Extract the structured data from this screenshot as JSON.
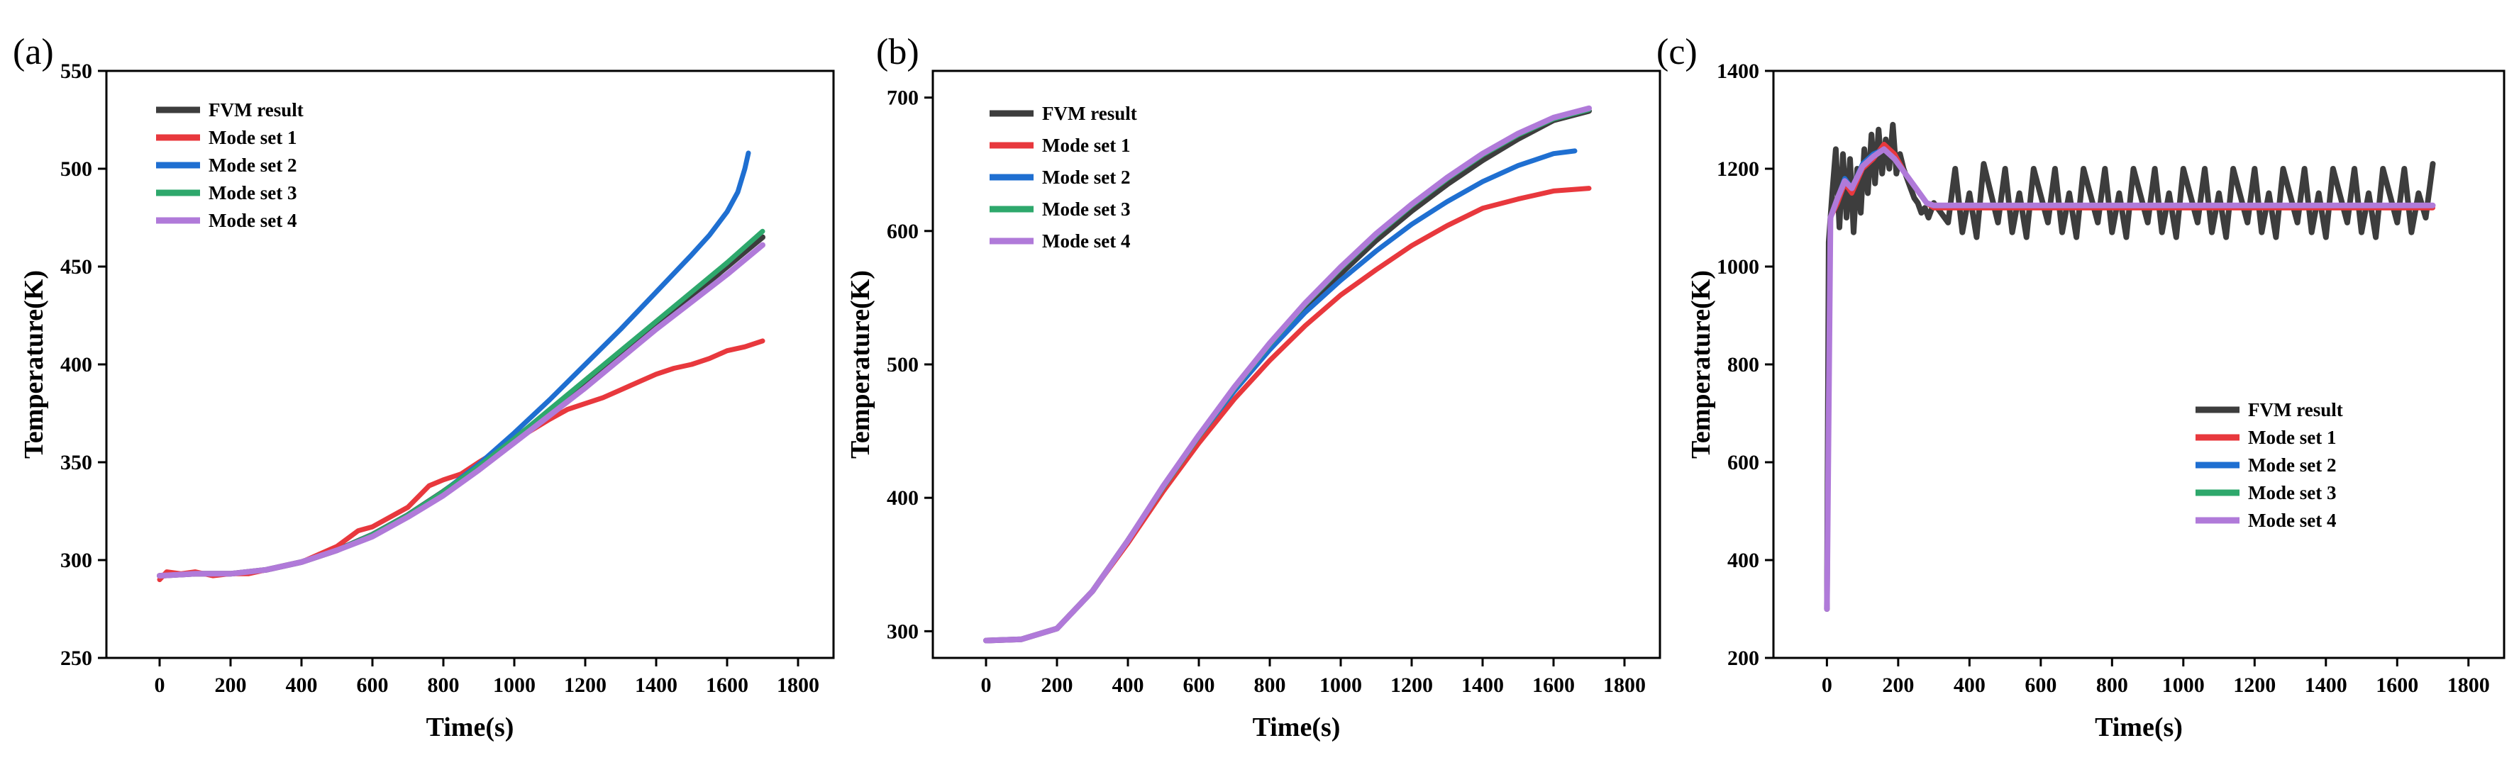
{
  "figure": {
    "xlabel": "Time(s)",
    "ylabel": "Temperature(K)"
  },
  "colors": {
    "FVM result": "#3d3d3d",
    "Mode set 1": "#e8383d",
    "Mode set 2": "#1f6fd1",
    "Mode set 3": "#2ea86c",
    "Mode set 4": "#b07ad9"
  },
  "chart_data": [
    {
      "type": "line",
      "panel_label": "(a)",
      "xlabel": "Time(s)",
      "ylabel": "Temperature(K)",
      "xlim": [
        -150,
        1900
      ],
      "ylim": [
        250,
        550
      ],
      "xticks": [
        0,
        200,
        400,
        600,
        800,
        1000,
        1200,
        1400,
        1600,
        1800
      ],
      "yticks": [
        250,
        300,
        350,
        400,
        450,
        500,
        550
      ],
      "legend": {
        "position": "top-left",
        "entries": [
          "FVM result",
          "Mode set 1",
          "Mode set 2",
          "Mode set 3",
          "Mode set 4"
        ]
      },
      "series": [
        {
          "name": "FVM result",
          "x": [
            0,
            100,
            200,
            300,
            400,
            500,
            600,
            700,
            800,
            900,
            1000,
            1100,
            1200,
            1300,
            1400,
            1500,
            1600,
            1700
          ],
          "y": [
            292,
            293,
            293,
            295,
            299,
            305,
            313,
            323,
            335,
            348,
            362,
            376,
            391,
            405,
            420,
            435,
            450,
            465
          ]
        },
        {
          "name": "Mode set 1",
          "x": [
            0,
            20,
            60,
            100,
            150,
            200,
            250,
            300,
            400,
            500,
            560,
            600,
            700,
            760,
            800,
            850,
            900,
            1000,
            1100,
            1150,
            1200,
            1250,
            1300,
            1350,
            1400,
            1450,
            1500,
            1550,
            1600,
            1650,
            1700
          ],
          "y": [
            290,
            294,
            293,
            294,
            292,
            293,
            293,
            295,
            299,
            307,
            315,
            317,
            327,
            338,
            341,
            344,
            350,
            361,
            372,
            377,
            380,
            383,
            387,
            391,
            395,
            398,
            400,
            403,
            407,
            409,
            412
          ]
        },
        {
          "name": "Mode set 2",
          "x": [
            0,
            100,
            200,
            300,
            400,
            500,
            600,
            700,
            800,
            900,
            1000,
            1100,
            1200,
            1300,
            1400,
            1500,
            1550,
            1600,
            1630,
            1650,
            1660
          ],
          "y": [
            292,
            293,
            293,
            295,
            299,
            305,
            313,
            323,
            335,
            349,
            365,
            382,
            400,
            418,
            437,
            456,
            466,
            478,
            488,
            500,
            508
          ]
        },
        {
          "name": "Mode set 3",
          "x": [
            0,
            100,
            200,
            300,
            400,
            500,
            600,
            700,
            800,
            900,
            1000,
            1100,
            1200,
            1300,
            1400,
            1500,
            1600,
            1700
          ],
          "y": [
            292,
            293,
            293,
            295,
            299,
            305,
            313,
            323,
            335,
            348,
            362,
            377,
            392,
            407,
            422,
            437,
            452,
            468
          ]
        },
        {
          "name": "Mode set 4",
          "x": [
            0,
            100,
            200,
            300,
            400,
            500,
            600,
            700,
            800,
            900,
            1000,
            1100,
            1200,
            1300,
            1400,
            1500,
            1600,
            1700
          ],
          "y": [
            292,
            293,
            293,
            295,
            299,
            305,
            312,
            322,
            333,
            346,
            360,
            374,
            388,
            403,
            418,
            432,
            446,
            461
          ]
        }
      ]
    },
    {
      "type": "line",
      "panel_label": "(b)",
      "xlabel": "Time(s)",
      "ylabel": "Temperature(K)",
      "xlim": [
        -150,
        1900
      ],
      "ylim": [
        280,
        720
      ],
      "xticks": [
        0,
        200,
        400,
        600,
        800,
        1000,
        1200,
        1400,
        1600,
        1800
      ],
      "yticks": [
        300,
        400,
        500,
        600,
        700
      ],
      "legend": {
        "position": "top-left",
        "entries": [
          "FVM result",
          "Mode set 1",
          "Mode set 2",
          "Mode set 3",
          "Mode set 4"
        ]
      },
      "series": [
        {
          "name": "FVM result",
          "x": [
            0,
            100,
            200,
            300,
            400,
            500,
            600,
            700,
            800,
            900,
            1000,
            1100,
            1200,
            1300,
            1400,
            1500,
            1600,
            1700
          ],
          "y": [
            293,
            294,
            302,
            330,
            368,
            408,
            446,
            481,
            513,
            542,
            568,
            593,
            615,
            635,
            653,
            669,
            683,
            690
          ]
        },
        {
          "name": "Mode set 1",
          "x": [
            0,
            100,
            200,
            300,
            400,
            500,
            600,
            700,
            800,
            900,
            1000,
            1100,
            1200,
            1300,
            1400,
            1500,
            1600,
            1700
          ],
          "y": [
            293,
            294,
            302,
            330,
            366,
            405,
            441,
            474,
            503,
            529,
            552,
            571,
            589,
            604,
            617,
            624,
            630,
            632
          ]
        },
        {
          "name": "Mode set 2",
          "x": [
            0,
            100,
            200,
            300,
            400,
            500,
            600,
            700,
            800,
            900,
            1000,
            1100,
            1200,
            1300,
            1400,
            1500,
            1600,
            1660
          ],
          "y": [
            293,
            294,
            302,
            330,
            368,
            408,
            446,
            480,
            511,
            539,
            563,
            585,
            605,
            622,
            637,
            649,
            658,
            660
          ]
        },
        {
          "name": "Mode set 3",
          "x": [
            0,
            100,
            200,
            300,
            400,
            500,
            600,
            700,
            800,
            900,
            1000,
            1100,
            1200,
            1300,
            1400,
            1500,
            1600,
            1700
          ],
          "y": [
            293,
            294,
            302,
            330,
            368,
            408,
            446,
            482,
            515,
            545,
            572,
            597,
            619,
            639,
            657,
            672,
            684,
            691
          ]
        },
        {
          "name": "Mode set 4",
          "x": [
            0,
            100,
            200,
            300,
            400,
            500,
            600,
            700,
            800,
            900,
            1000,
            1100,
            1200,
            1300,
            1400,
            1500,
            1600,
            1700
          ],
          "y": [
            293,
            294,
            302,
            330,
            368,
            409,
            447,
            483,
            516,
            546,
            573,
            598,
            620,
            640,
            658,
            673,
            685,
            692
          ]
        }
      ]
    },
    {
      "type": "line",
      "panel_label": "(c)",
      "xlabel": "Time(s)",
      "ylabel": "Temperature(K)",
      "xlim": [
        -150,
        1900
      ],
      "ylim": [
        200,
        1400
      ],
      "xticks": [
        0,
        200,
        400,
        600,
        800,
        1000,
        1200,
        1400,
        1600,
        1800
      ],
      "yticks": [
        200,
        400,
        600,
        800,
        1000,
        1200,
        1400
      ],
      "legend": {
        "position": "lower-right",
        "entries": [
          "FVM result",
          "Mode set 1",
          "Mode set 2",
          "Mode set 3",
          "Mode set 4"
        ]
      },
      "series": [
        {
          "name": "FVM result",
          "x": [
            0,
            5,
            15,
            25,
            35,
            45,
            55,
            65,
            75,
            85,
            95,
            105,
            115,
            125,
            135,
            145,
            155,
            165,
            175,
            185,
            195,
            205,
            215,
            225,
            235,
            245,
            255,
            265,
            275,
            285,
            300,
            340,
            360,
            380,
            400,
            420,
            440,
            480,
            500,
            520,
            540,
            560,
            580,
            620,
            640,
            660,
            680,
            700,
            720,
            760,
            780,
            800,
            820,
            840,
            860,
            900,
            920,
            940,
            960,
            980,
            1000,
            1040,
            1060,
            1080,
            1100,
            1120,
            1140,
            1180,
            1200,
            1220,
            1240,
            1260,
            1280,
            1320,
            1340,
            1360,
            1380,
            1400,
            1420,
            1460,
            1480,
            1500,
            1520,
            1540,
            1560,
            1600,
            1620,
            1640,
            1660,
            1680,
            1700
          ],
          "y": [
            300,
            1050,
            1150,
            1240,
            1080,
            1230,
            1100,
            1220,
            1070,
            1200,
            1110,
            1240,
            1150,
            1270,
            1170,
            1280,
            1190,
            1260,
            1200,
            1290,
            1190,
            1230,
            1200,
            1180,
            1160,
            1140,
            1130,
            1110,
            1120,
            1100,
            1130,
            1090,
            1200,
            1070,
            1150,
            1060,
            1210,
            1090,
            1200,
            1070,
            1150,
            1060,
            1200,
            1090,
            1200,
            1070,
            1150,
            1060,
            1200,
            1090,
            1200,
            1070,
            1150,
            1060,
            1200,
            1090,
            1200,
            1070,
            1150,
            1060,
            1200,
            1090,
            1200,
            1070,
            1150,
            1060,
            1200,
            1090,
            1200,
            1070,
            1150,
            1060,
            1200,
            1090,
            1200,
            1070,
            1150,
            1060,
            1200,
            1090,
            1200,
            1070,
            1150,
            1060,
            1200,
            1090,
            1200,
            1070,
            1150,
            1100,
            1210
          ]
        },
        {
          "name": "Mode set 1",
          "x": [
            0,
            10,
            30,
            50,
            70,
            100,
            130,
            160,
            190,
            220,
            250,
            280,
            300,
            400,
            500,
            600,
            700,
            800,
            900,
            1000,
            1100,
            1200,
            1300,
            1400,
            1500,
            1600,
            1700
          ],
          "y": [
            300,
            1100,
            1130,
            1170,
            1150,
            1200,
            1220,
            1250,
            1230,
            1190,
            1160,
            1130,
            1120,
            1120,
            1120,
            1120,
            1120,
            1120,
            1120,
            1120,
            1120,
            1120,
            1120,
            1120,
            1120,
            1120,
            1120
          ]
        },
        {
          "name": "Mode set 2",
          "x": [
            0,
            10,
            30,
            50,
            70,
            100,
            130,
            160,
            190,
            220,
            250,
            280,
            300,
            400,
            500,
            600,
            700,
            800,
            900,
            1000,
            1100,
            1200,
            1300,
            1400,
            1500,
            1600,
            1700
          ],
          "y": [
            300,
            1100,
            1140,
            1180,
            1160,
            1210,
            1230,
            1240,
            1220,
            1190,
            1160,
            1130,
            1125,
            1125,
            1125,
            1125,
            1125,
            1125,
            1125,
            1125,
            1125,
            1125,
            1125,
            1125,
            1125,
            1125,
            1125
          ]
        },
        {
          "name": "Mode set 3",
          "x": [
            0,
            10,
            30,
            50,
            70,
            100,
            130,
            160,
            190,
            220,
            250,
            280,
            300,
            400,
            500,
            600,
            700,
            800,
            900,
            1000,
            1100,
            1200,
            1300,
            1400,
            1500,
            1600,
            1700
          ],
          "y": [
            300,
            1100,
            1140,
            1175,
            1160,
            1205,
            1225,
            1240,
            1220,
            1190,
            1160,
            1130,
            1125,
            1125,
            1125,
            1125,
            1125,
            1125,
            1125,
            1125,
            1125,
            1125,
            1125,
            1125,
            1125,
            1125,
            1125
          ]
        },
        {
          "name": "Mode set 4",
          "x": [
            0,
            10,
            30,
            50,
            70,
            100,
            130,
            160,
            190,
            220,
            250,
            280,
            300,
            400,
            500,
            600,
            700,
            800,
            900,
            1000,
            1100,
            1200,
            1300,
            1400,
            1500,
            1600,
            1700
          ],
          "y": [
            300,
            1100,
            1140,
            1175,
            1160,
            1205,
            1225,
            1240,
            1220,
            1190,
            1160,
            1130,
            1125,
            1125,
            1125,
            1125,
            1125,
            1125,
            1125,
            1125,
            1125,
            1125,
            1125,
            1125,
            1125,
            1125,
            1125
          ]
        }
      ]
    }
  ]
}
